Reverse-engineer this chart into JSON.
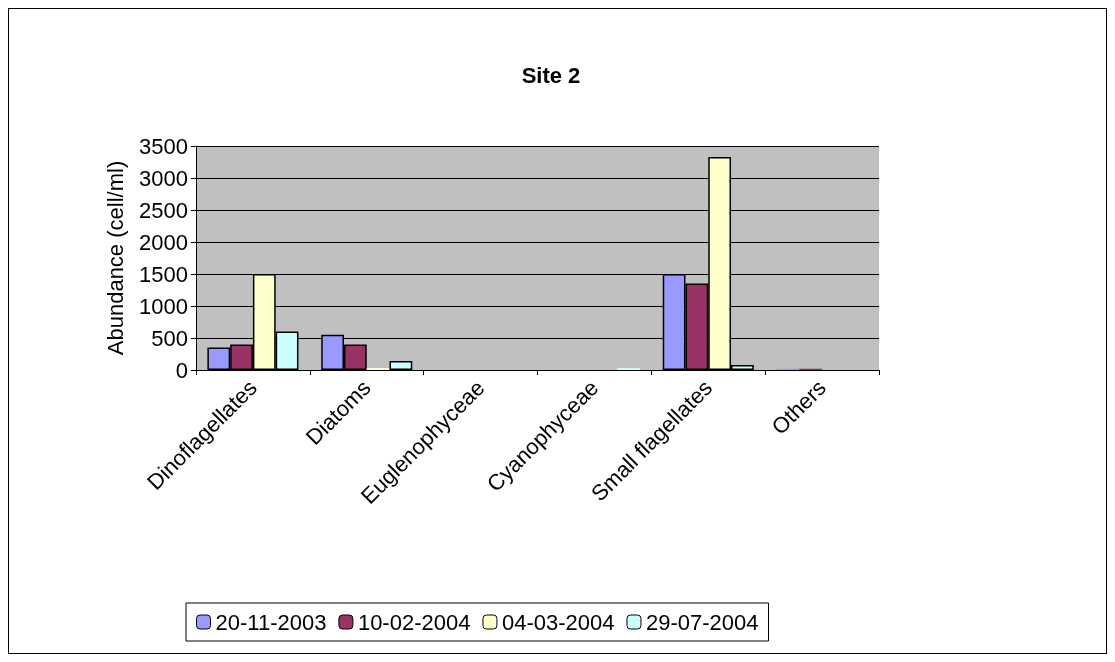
{
  "chart_data": {
    "type": "bar",
    "title": "Site 2",
    "ylabel": "Abundance (cell/ml)",
    "categories": [
      "Dinoflagellates",
      "Diatoms",
      "Euglenophyceae",
      "Cyanophyceae",
      "Small flagellates",
      "Others"
    ],
    "series": [
      {
        "name": "20-11-2003",
        "color": "#9999ff",
        "values": [
          350,
          550,
          0,
          0,
          1500,
          20
        ]
      },
      {
        "name": "10-02-2004",
        "color": "#993366",
        "values": [
          400,
          400,
          0,
          0,
          1350,
          20
        ]
      },
      {
        "name": "04-03-2004",
        "color": "#ffffcc",
        "values": [
          1500,
          30,
          0,
          0,
          3330,
          0
        ]
      },
      {
        "name": "29-07-2004",
        "color": "#ccffff",
        "values": [
          600,
          140,
          0,
          30,
          80,
          0
        ]
      }
    ],
    "ylim": [
      0,
      3500
    ],
    "yticks": [
      0,
      500,
      1000,
      1500,
      2000,
      2500,
      3000,
      3500
    ],
    "grid": "y",
    "legend": "bottom"
  }
}
